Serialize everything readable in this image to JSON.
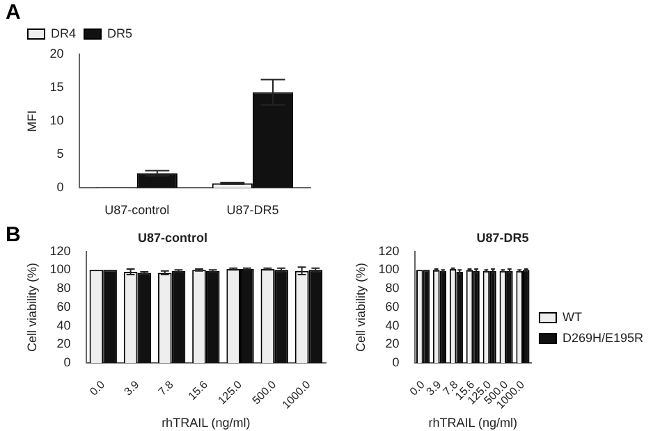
{
  "chart_data": [
    {
      "type": "bar",
      "ylabel": "MFI",
      "annotations": [
        "A"
      ],
      "categories": [
        "U87-control",
        "U87-DR5"
      ],
      "ylim": [
        0,
        20
      ],
      "yticks": [
        0,
        5,
        10,
        15,
        20
      ],
      "grid": false,
      "legend": "top left",
      "series": [
        {
          "name": "DR4",
          "color": "#eeeeee",
          "values": [
            0.1,
            0.7
          ],
          "errors": [
            null,
            0.1
          ]
        },
        {
          "name": "DR5",
          "color": "#111111",
          "values": [
            2.2,
            14.3
          ],
          "errors": [
            0.4,
            1.9
          ]
        }
      ]
    },
    {
      "type": "bar",
      "title": "U87-control",
      "xlabel": "rhTRAIL (ng/ml)",
      "ylabel": "Cell viability (%)",
      "annotations": [
        "B"
      ],
      "categories": [
        "0.0",
        "3.9",
        "7.8",
        "15.6",
        "125.0",
        "500.0",
        "1000.0"
      ],
      "ylim": [
        0,
        120
      ],
      "yticks": [
        0,
        20,
        40,
        60,
        80,
        100,
        120
      ],
      "grid": false,
      "legend": false,
      "series": [
        {
          "color": "#eeeeee",
          "values": [
            100,
            98,
            97,
            100,
            101,
            101,
            99
          ],
          "errors": [
            null,
            3,
            2,
            1,
            1,
            1,
            4
          ]
        },
        {
          "color": "#111111",
          "values": [
            100,
            97,
            99,
            99,
            101,
            100,
            100
          ],
          "errors": [
            null,
            1,
            1,
            1,
            1,
            2,
            2
          ]
        }
      ]
    },
    {
      "type": "bar",
      "title": "U87-DR5",
      "xlabel": "rhTRAIL (ng/ml)",
      "ylabel": "Cell viability (%)",
      "categories": [
        "0.0",
        "3.9",
        "7.8",
        "15.6",
        "125.0",
        "500.0",
        "1000.0"
      ],
      "ylim": [
        0,
        120
      ],
      "yticks": [
        0,
        20,
        40,
        60,
        80,
        100,
        120
      ],
      "grid": false,
      "legend": "right",
      "series": [
        {
          "name": "WT",
          "color": "#eeeeee",
          "values": [
            100,
            100,
            101,
            100,
            99,
            99,
            99
          ],
          "errors": [
            null,
            1,
            1,
            1,
            1,
            1,
            1
          ]
        },
        {
          "name": "D269H/E195R",
          "color": "#111111",
          "values": [
            100,
            99,
            98,
            99,
            99,
            99,
            100
          ],
          "errors": [
            null,
            1,
            2,
            2,
            2,
            2,
            1
          ]
        }
      ]
    }
  ]
}
